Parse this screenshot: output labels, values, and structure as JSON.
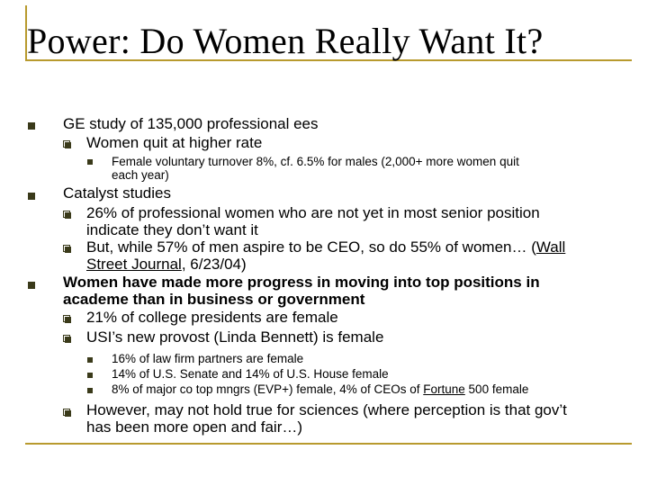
{
  "slide": {
    "title": "Power: Do Women Really Want It?",
    "bullets": {
      "ge_study": "GE study of 135,000 professional ees",
      "women_quit": "Women quit at higher rate",
      "turnover_line1": "Female voluntary turnover 8%, cf. 6.5% for males (2,000+ more women quit",
      "turnover_line2": "each year)",
      "catalyst": "Catalyst studies",
      "pct26_line1": "26% of professional women who are not yet in most senior position",
      "pct26_line2": "indicate they don’t want it",
      "ceo_line1_pre": "But, while 57% of men aspire to be CEO, so do 55% of women…  (",
      "ceo_line1_link": "Wall",
      "ceo_line2_link": "Street Journal",
      "ceo_line2_post": ", 6/23/04)",
      "academe_line1": "Women have made more progress in moving into top positions in",
      "academe_line2": "academe than in business or government",
      "presidents": "21% of college presidents are female",
      "provost": "USI’s new provost (Linda Bennett) is female",
      "law": "16% of law firm partners are female",
      "senate": "14% of U.S. Senate and 14% of U.S. House female",
      "mngrs_pre": "8% of major co top mngrs (EVP+) female, 4% of CEOs of ",
      "mngrs_fortune": "Fortune",
      "mngrs_post": " 500 female",
      "however_line1": "However, may not hold true for sciences (where perception is that gov’t",
      "however_line2": "has been more open and fair…)"
    }
  }
}
